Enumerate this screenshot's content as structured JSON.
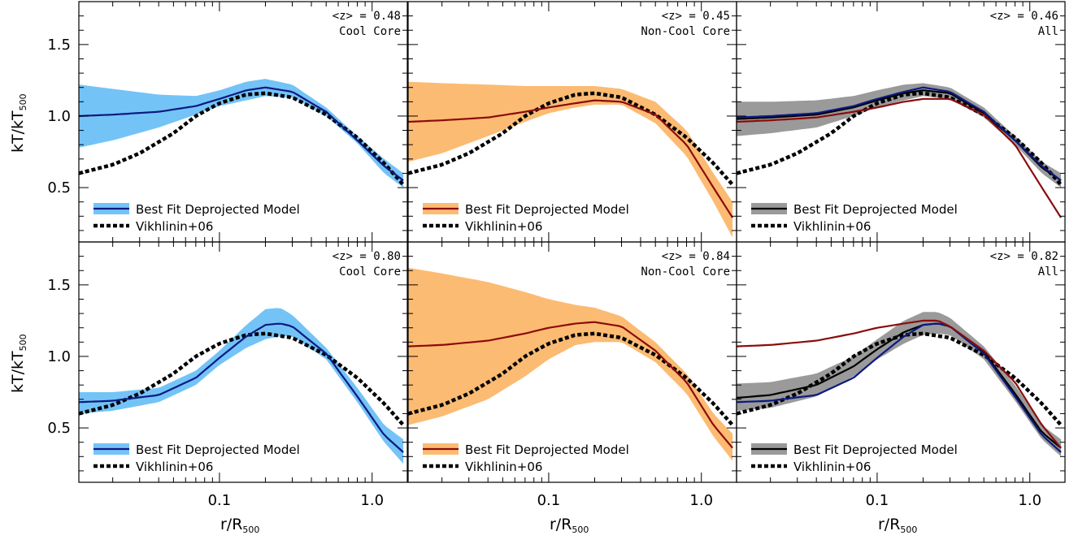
{
  "colors": {
    "cool_band": "#73c3f7",
    "cool_line": "#0d1a80",
    "noncool_band": "#fcbb72",
    "noncool_line": "#8b0c0c",
    "all_band": "#9a9a9a",
    "all_line": "#000000",
    "vikhlinin": "#000000"
  },
  "axes": {
    "ylabel_main": "kT/kT",
    "ylabel_sub": "500",
    "xlabel_main": "r/R",
    "xlabel_sub": "500",
    "x_scale": "log",
    "xlim": [
      0.012,
      1.7
    ],
    "ylim": [
      0.12,
      1.8
    ],
    "xticks": [
      0.1,
      1.0
    ],
    "xtick_labels": [
      "0.1",
      "1.0"
    ],
    "yticks": [
      0.5,
      1.0,
      1.5
    ],
    "ytick_labels": [
      "0.5",
      "1.0",
      "1.5"
    ]
  },
  "chart_data": [
    {
      "type": "area",
      "panel": "top-left",
      "annotation_line1": "<z> = 0.48",
      "annotation_line2": "Cool Core",
      "legend_best_fit": "Best Fit Deprojected Model",
      "legend_vikhlinin": "Vikhlinin+06",
      "legend_placement": "bottom-left",
      "band_color": "cool_band",
      "x": [
        0.012,
        0.02,
        0.04,
        0.07,
        0.1,
        0.15,
        0.2,
        0.3,
        0.5,
        0.8,
        1.2,
        1.6
      ],
      "band_upper": [
        1.22,
        1.19,
        1.15,
        1.14,
        1.18,
        1.24,
        1.26,
        1.22,
        1.06,
        0.86,
        0.7,
        0.6
      ],
      "band_lower": [
        0.78,
        0.83,
        0.92,
        1.01,
        1.07,
        1.11,
        1.14,
        1.13,
        1.0,
        0.81,
        0.6,
        0.5
      ],
      "series": [
        {
          "label": "cool",
          "color": "cool_line",
          "values": [
            1.0,
            1.01,
            1.03,
            1.07,
            1.12,
            1.18,
            1.2,
            1.17,
            1.03,
            0.83,
            0.65,
            0.55
          ]
        }
      ]
    },
    {
      "type": "area",
      "panel": "top-middle",
      "annotation_line1": "<z> = 0.45",
      "annotation_line2": "Non-Cool Core",
      "legend_best_fit": "Best Fit Deprojected Model",
      "legend_vikhlinin": "Vikhlinin+06",
      "legend_placement": "bottom-left",
      "band_color": "noncool_band",
      "x": [
        0.012,
        0.02,
        0.04,
        0.07,
        0.1,
        0.15,
        0.2,
        0.3,
        0.5,
        0.8,
        1.2,
        1.6
      ],
      "band_upper": [
        1.24,
        1.23,
        1.22,
        1.21,
        1.21,
        1.21,
        1.21,
        1.19,
        1.1,
        0.9,
        0.6,
        0.4
      ],
      "band_lower": [
        0.68,
        0.74,
        0.86,
        0.96,
        1.02,
        1.06,
        1.08,
        1.08,
        0.95,
        0.72,
        0.4,
        0.15
      ],
      "series": [
        {
          "label": "noncool",
          "color": "noncool_line",
          "values": [
            0.96,
            0.97,
            0.99,
            1.03,
            1.06,
            1.09,
            1.11,
            1.1,
            1.01,
            0.8,
            0.5,
            0.29
          ]
        }
      ]
    },
    {
      "type": "area",
      "panel": "top-right",
      "annotation_line1": "<z> = 0.46",
      "annotation_line2": "All",
      "legend_best_fit": "Best Fit Deprojected Model",
      "legend_vikhlinin": "Vikhlinin+06",
      "legend_placement": "bottom-left",
      "band_color": "all_band",
      "x": [
        0.012,
        0.02,
        0.04,
        0.07,
        0.1,
        0.15,
        0.2,
        0.3,
        0.5,
        0.8,
        1.2,
        1.6
      ],
      "band_upper": [
        1.1,
        1.1,
        1.11,
        1.14,
        1.18,
        1.22,
        1.23,
        1.2,
        1.06,
        0.86,
        0.68,
        0.6
      ],
      "band_lower": [
        0.86,
        0.88,
        0.92,
        1.0,
        1.06,
        1.11,
        1.14,
        1.12,
        0.99,
        0.8,
        0.6,
        0.5
      ],
      "series": [
        {
          "label": "all",
          "color": "all_line",
          "values": [
            0.98,
            0.99,
            1.01,
            1.06,
            1.11,
            1.16,
            1.18,
            1.16,
            1.02,
            0.83,
            0.64,
            0.55
          ]
        },
        {
          "label": "cool",
          "color": "cool_line",
          "values": [
            0.99,
            1.0,
            1.02,
            1.07,
            1.12,
            1.17,
            1.2,
            1.17,
            1.03,
            0.83,
            0.65,
            0.55
          ]
        },
        {
          "label": "noncool",
          "color": "noncool_line",
          "values": [
            0.96,
            0.97,
            0.99,
            1.03,
            1.06,
            1.1,
            1.12,
            1.12,
            1.01,
            0.8,
            0.5,
            0.29
          ]
        }
      ]
    },
    {
      "type": "area",
      "panel": "bottom-left",
      "annotation_line1": "<z> = 0.80",
      "annotation_line2": "Cool Core",
      "legend_best_fit": "Best Fit Deprojected Model",
      "legend_vikhlinin": "Vikhlinin+06",
      "legend_placement": "bottom-left",
      "band_color": "cool_band",
      "x": [
        0.012,
        0.02,
        0.04,
        0.07,
        0.1,
        0.15,
        0.2,
        0.25,
        0.3,
        0.5,
        0.8,
        1.2,
        1.6
      ],
      "band_upper": [
        0.75,
        0.75,
        0.78,
        0.9,
        1.04,
        1.22,
        1.33,
        1.34,
        1.29,
        1.06,
        0.78,
        0.52,
        0.42
      ],
      "band_lower": [
        0.6,
        0.62,
        0.68,
        0.8,
        0.94,
        1.06,
        1.12,
        1.14,
        1.14,
        0.98,
        0.68,
        0.4,
        0.25
      ],
      "series": [
        {
          "label": "cool",
          "color": "cool_line",
          "values": [
            0.68,
            0.69,
            0.73,
            0.85,
            0.99,
            1.14,
            1.22,
            1.23,
            1.21,
            1.02,
            0.72,
            0.45,
            0.33
          ]
        }
      ]
    },
    {
      "type": "area",
      "panel": "bottom-middle",
      "annotation_line1": "<z> = 0.84",
      "annotation_line2": "Non-Cool Core",
      "legend_best_fit": "Best Fit Deprojected Model",
      "legend_vikhlinin": "Vikhlinin+06",
      "legend_placement": "bottom-left",
      "band_color": "noncool_band",
      "x": [
        0.012,
        0.02,
        0.04,
        0.07,
        0.1,
        0.15,
        0.2,
        0.3,
        0.5,
        0.8,
        1.2,
        1.6
      ],
      "band_upper": [
        1.62,
        1.58,
        1.52,
        1.45,
        1.4,
        1.36,
        1.34,
        1.28,
        1.1,
        0.88,
        0.6,
        0.46
      ],
      "band_lower": [
        0.52,
        0.58,
        0.7,
        0.86,
        0.98,
        1.08,
        1.1,
        1.1,
        0.96,
        0.74,
        0.44,
        0.27
      ],
      "series": [
        {
          "label": "noncool",
          "color": "noncool_line",
          "values": [
            1.07,
            1.08,
            1.11,
            1.16,
            1.2,
            1.23,
            1.24,
            1.21,
            1.04,
            0.82,
            0.52,
            0.36
          ]
        }
      ]
    },
    {
      "type": "area",
      "panel": "bottom-right",
      "annotation_line1": "<z> = 0.82",
      "annotation_line2": "All",
      "legend_best_fit": "Best Fit Deprojected Model",
      "legend_vikhlinin": "Vikhlinin+06",
      "legend_placement": "bottom-left",
      "band_color": "all_band",
      "x": [
        0.012,
        0.02,
        0.04,
        0.07,
        0.1,
        0.15,
        0.2,
        0.25,
        0.3,
        0.5,
        0.8,
        1.2,
        1.6
      ],
      "band_upper": [
        0.81,
        0.82,
        0.88,
        1.0,
        1.12,
        1.25,
        1.31,
        1.31,
        1.27,
        1.07,
        0.8,
        0.52,
        0.42
      ],
      "band_lower": [
        0.62,
        0.64,
        0.72,
        0.86,
        0.98,
        1.09,
        1.15,
        1.16,
        1.15,
        0.98,
        0.69,
        0.42,
        0.3
      ],
      "series": [
        {
          "label": "all",
          "color": "all_line",
          "values": [
            0.71,
            0.73,
            0.8,
            0.93,
            1.05,
            1.17,
            1.22,
            1.23,
            1.21,
            1.03,
            0.74,
            0.47,
            0.36
          ]
        },
        {
          "label": "cool",
          "color": "cool_line",
          "values": [
            0.68,
            0.69,
            0.73,
            0.85,
            0.99,
            1.14,
            1.22,
            1.23,
            1.21,
            1.02,
            0.72,
            0.45,
            0.33
          ]
        },
        {
          "label": "noncool",
          "color": "noncool_line",
          "values": [
            1.07,
            1.08,
            1.11,
            1.16,
            1.2,
            1.23,
            1.25,
            1.25,
            1.21,
            1.04,
            0.82,
            0.52,
            0.36
          ]
        }
      ]
    }
  ],
  "vikhlinin": {
    "x": [
      0.012,
      0.02,
      0.03,
      0.05,
      0.07,
      0.1,
      0.15,
      0.2,
      0.3,
      0.5,
      0.8,
      1.2,
      1.6
    ],
    "values": [
      0.6,
      0.66,
      0.74,
      0.88,
      1.0,
      1.09,
      1.15,
      1.16,
      1.13,
      1.01,
      0.85,
      0.67,
      0.52
    ]
  }
}
